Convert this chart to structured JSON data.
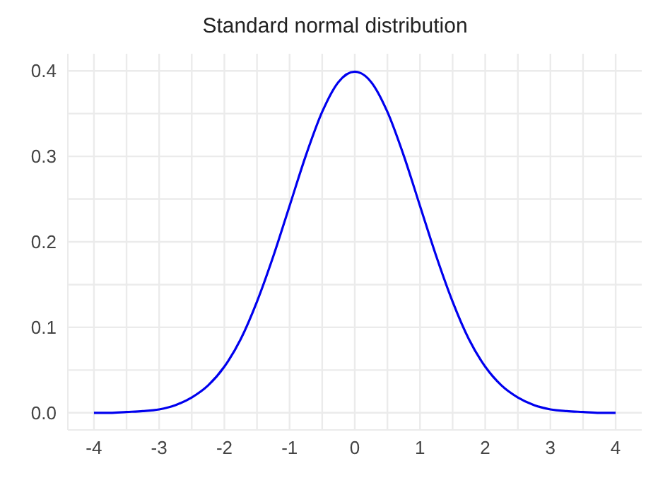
{
  "chart_data": {
    "type": "line",
    "title": "Standard normal distribution",
    "x": [
      -4,
      -3.75,
      -3.5,
      -3.25,
      -3,
      -2.75,
      -2.5,
      -2.25,
      -2,
      -1.75,
      -1.5,
      -1.25,
      -1,
      -0.75,
      -0.5,
      -0.25,
      0,
      0.25,
      0.5,
      0.75,
      1,
      1.25,
      1.5,
      1.75,
      2,
      2.25,
      2.5,
      2.75,
      3,
      3.25,
      3.5,
      3.75,
      4
    ],
    "series": [
      {
        "color": "#0000ee",
        "values": [
          0.0,
          0.0,
          0.001,
          0.002,
          0.004,
          0.009,
          0.018,
          0.032,
          0.054,
          0.086,
          0.13,
          0.183,
          0.242,
          0.301,
          0.352,
          0.387,
          0.399,
          0.387,
          0.352,
          0.301,
          0.242,
          0.183,
          0.13,
          0.086,
          0.054,
          0.032,
          0.018,
          0.009,
          0.004,
          0.002,
          0.001,
          0.0,
          0.0
        ]
      }
    ],
    "xlim": [
      -4.4,
      4.4
    ],
    "xticks": [
      -4,
      {
        "value": -3.5,
        "label": null
      },
      -3,
      {
        "value": -2.5,
        "label": null
      },
      -2,
      {
        "value": -1.5,
        "label": null
      },
      -1,
      {
        "value": -0.5,
        "label": null
      },
      0,
      {
        "value": 0.5,
        "label": null
      },
      1,
      {
        "value": 1.5,
        "label": null
      },
      2,
      {
        "value": 2.5,
        "label": null
      },
      3,
      {
        "value": 3.5,
        "label": null
      },
      4
    ],
    "ylim": [
      -0.02,
      0.42
    ],
    "yticks": [
      {
        "value": 0,
        "label": "0.0"
      },
      {
        "value": 0.05,
        "label": null
      },
      {
        "value": 0.1,
        "label": "0.1"
      },
      {
        "value": 0.15,
        "label": null
      },
      {
        "value": 0.2,
        "label": "0.2"
      },
      {
        "value": 0.25,
        "label": null
      },
      {
        "value": 0.3,
        "label": "0.3"
      },
      {
        "value": 0.35,
        "label": null
      },
      {
        "value": 0.4,
        "label": "0.4"
      }
    ],
    "grid": true,
    "marker": "none",
    "line_style": "solid"
  }
}
